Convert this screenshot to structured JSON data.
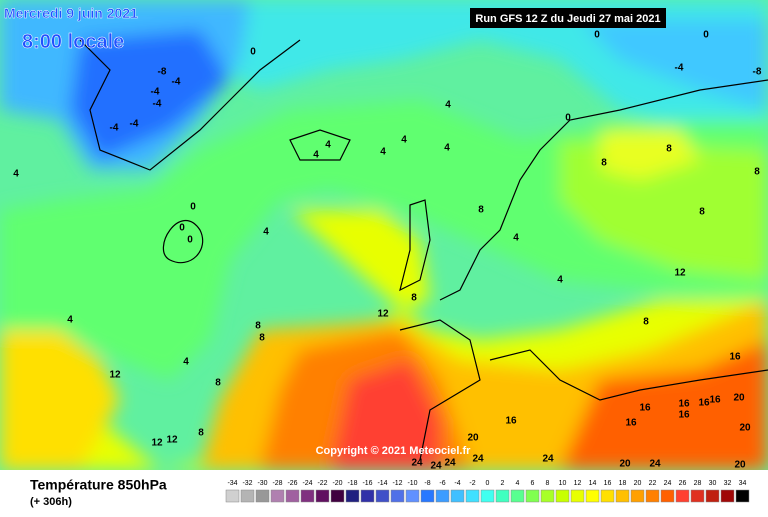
{
  "header": {
    "date": "Mercredi 9 juin 2021",
    "time": "8:00 locale",
    "run": "Run GFS 12 Z du Jeudi 27 mai 2021"
  },
  "copyright": "Copyright © 2021 Meteociel.fr",
  "footer": {
    "title": "Température 850hPa",
    "lead": "(+ 306h)"
  },
  "legend": {
    "ticks": [
      -34,
      -32,
      -30,
      -28,
      -26,
      -24,
      -22,
      -20,
      -18,
      -16,
      -14,
      -12,
      -10,
      -8,
      -6,
      -4,
      -2,
      0,
      2,
      4,
      6,
      8,
      10,
      12,
      14,
      16,
      18,
      20,
      22,
      24,
      26,
      28,
      30,
      32,
      34
    ],
    "colors": [
      "#d0d0d0",
      "#b4b4b4",
      "#989898",
      "#b080b0",
      "#a060a0",
      "#803080",
      "#601060",
      "#400040",
      "#202080",
      "#3030a8",
      "#4050c8",
      "#5070e8",
      "#6090ff",
      "#2878ff",
      "#3c9cff",
      "#40c0ff",
      "#40e0ff",
      "#40fff0",
      "#40ffc0",
      "#58ff90",
      "#80ff50",
      "#a8ff28",
      "#c8ff00",
      "#e8ff00",
      "#ffff00",
      "#ffe000",
      "#ffc000",
      "#ffa000",
      "#ff8000",
      "#ff6000",
      "#ff4030",
      "#e03020",
      "#c02010",
      "#a00808",
      "#000000"
    ]
  },
  "map_labels": [
    -8,
    -4,
    -4,
    -4,
    -4,
    -4,
    0,
    0,
    0,
    0,
    0,
    0,
    0,
    -4,
    -8,
    4,
    4,
    4,
    4,
    4,
    4,
    4,
    4,
    4,
    4,
    4,
    4,
    8,
    8,
    8,
    8,
    8,
    8,
    8,
    8,
    8,
    8,
    8,
    12,
    12,
    12,
    12,
    12,
    16,
    16,
    16,
    16,
    16,
    16,
    16,
    16,
    20,
    20,
    20,
    20,
    24,
    24,
    24,
    24,
    24,
    24,
    20
  ]
}
